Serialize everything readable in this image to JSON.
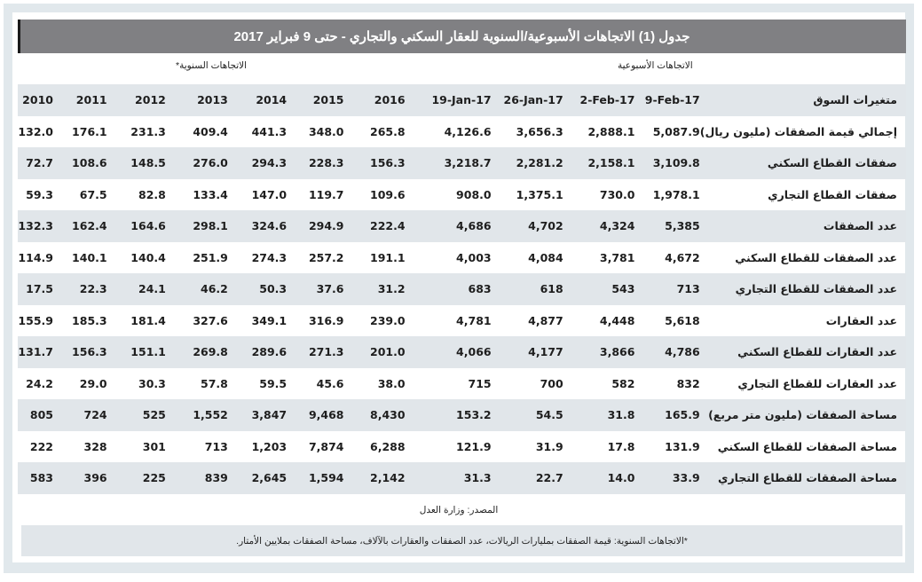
{
  "title": "جدول (1) الاتجاهات الأسبوعية/السنوية للعقار السكني والتجاري - حتى 9 فبراير 2017",
  "groups": {
    "weekly": "الاتجاهات الأسبوعية",
    "annual": "الاتجاهات السنوية*"
  },
  "table": {
    "header": {
      "label": "متغيرات السوق",
      "weekly": [
        "9-Feb-17",
        "2-Feb-17",
        "26-Jan-17",
        "19-Jan-17"
      ],
      "annual": [
        "2016",
        "2015",
        "2014",
        "2013",
        "2012",
        "2011",
        "2010"
      ]
    },
    "rows": [
      {
        "label": "إجمالي قيمة الصفقات (مليون ريال)",
        "weekly": [
          "5,087.9",
          "2,888.1",
          "3,656.3",
          "4,126.6"
        ],
        "annual": [
          "265.8",
          "348.0",
          "441.3",
          "409.4",
          "231.3",
          "176.1",
          "132.0"
        ]
      },
      {
        "label": "صفقات القطاع السكني",
        "weekly": [
          "3,109.8",
          "2,158.1",
          "2,281.2",
          "3,218.7"
        ],
        "annual": [
          "156.3",
          "228.3",
          "294.3",
          "276.0",
          "148.5",
          "108.6",
          "72.7"
        ]
      },
      {
        "label": "صفقات القطاع التجاري",
        "weekly": [
          "1,978.1",
          "730.0",
          "1,375.1",
          "908.0"
        ],
        "annual": [
          "109.6",
          "119.7",
          "147.0",
          "133.4",
          "82.8",
          "67.5",
          "59.3"
        ]
      },
      {
        "label": "عدد الصفقات",
        "weekly": [
          "5,385",
          "4,324",
          "4,702",
          "4,686"
        ],
        "annual": [
          "222.4",
          "294.9",
          "324.6",
          "298.1",
          "164.6",
          "162.4",
          "132.3"
        ]
      },
      {
        "label": "عدد الصفقات للقطاع السكني",
        "weekly": [
          "4,672",
          "3,781",
          "4,084",
          "4,003"
        ],
        "annual": [
          "191.1",
          "257.2",
          "274.3",
          "251.9",
          "140.4",
          "140.1",
          "114.9"
        ]
      },
      {
        "label": "عدد الصفقات للقطاع التجاري",
        "weekly": [
          "713",
          "543",
          "618",
          "683"
        ],
        "annual": [
          "31.2",
          "37.6",
          "50.3",
          "46.2",
          "24.1",
          "22.3",
          "17.5"
        ]
      },
      {
        "label": "عدد العقارات",
        "weekly": [
          "5,618",
          "4,448",
          "4,877",
          "4,781"
        ],
        "annual": [
          "239.0",
          "316.9",
          "349.1",
          "327.6",
          "181.4",
          "185.3",
          "155.9"
        ]
      },
      {
        "label": "عدد العقارات للقطاع السكني",
        "weekly": [
          "4,786",
          "3,866",
          "4,177",
          "4,066"
        ],
        "annual": [
          "201.0",
          "271.3",
          "289.6",
          "269.8",
          "151.1",
          "156.3",
          "131.7"
        ]
      },
      {
        "label": "عدد العقارات للقطاع التجاري",
        "weekly": [
          "832",
          "582",
          "700",
          "715"
        ],
        "annual": [
          "38.0",
          "45.6",
          "59.5",
          "57.8",
          "30.3",
          "29.0",
          "24.2"
        ]
      },
      {
        "label": "مساحة الصفقات (مليون متر مربع)",
        "weekly": [
          "165.9",
          "31.8",
          "54.5",
          "153.2"
        ],
        "annual": [
          "8,430",
          "9,468",
          "3,847",
          "1,552",
          "525",
          "724",
          "805"
        ]
      },
      {
        "label": "مساحة الصفقات للقطاع السكني",
        "weekly": [
          "131.9",
          "17.8",
          "31.9",
          "121.9"
        ],
        "annual": [
          "6,288",
          "7,874",
          "1,203",
          "713",
          "301",
          "328",
          "222"
        ]
      },
      {
        "label": "مساحة الصفقات للقطاع التجاري",
        "weekly": [
          "33.9",
          "14.0",
          "22.7",
          "31.3"
        ],
        "annual": [
          "2,142",
          "1,594",
          "2,645",
          "839",
          "225",
          "396",
          "583"
        ]
      }
    ]
  },
  "source": "المصدر: وزارة العدل",
  "footnote": "*الاتجاهات السنوية: قيمة الصفقات بمليارات الريالات، عدد الصفقات والعقارات بالآلاف، مساحة الصفقات بملايين الأمتار."
}
